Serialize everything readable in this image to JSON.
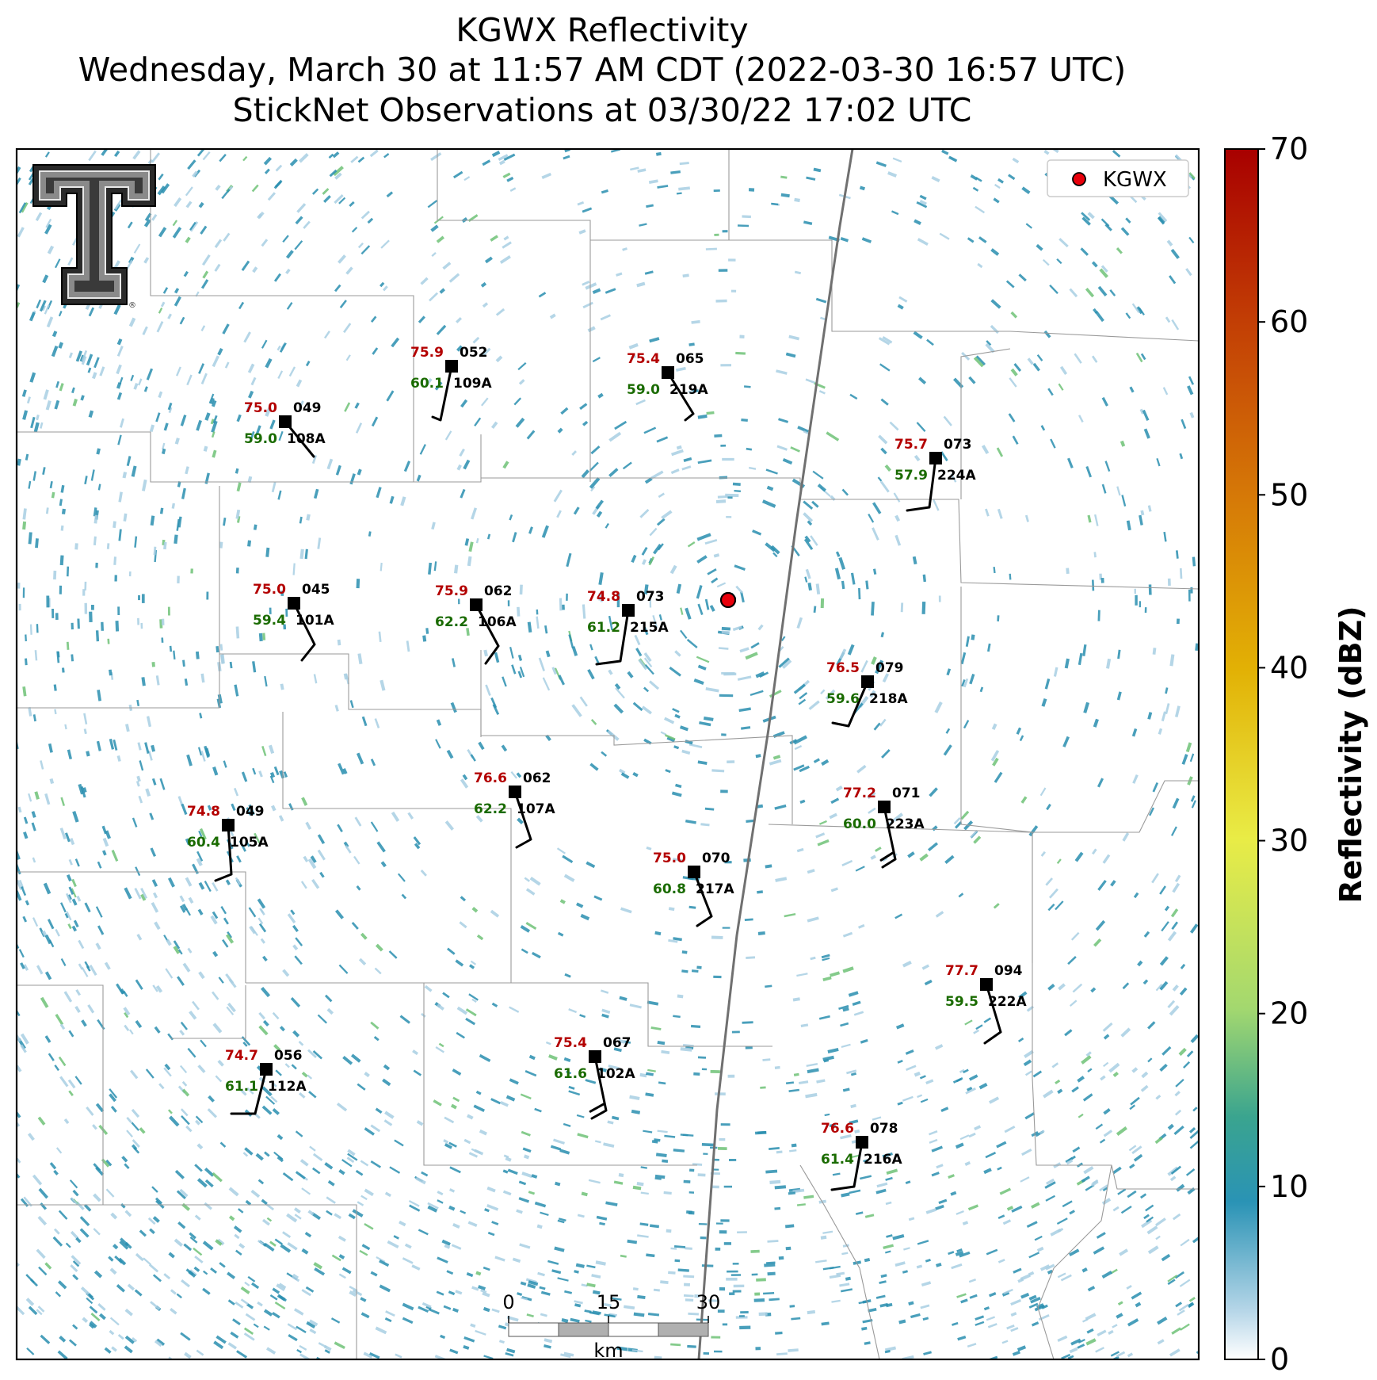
{
  "title": {
    "line1": "KGWX Reflectivity",
    "line2": "Wednesday, March 30 at 11:57 AM CDT (2022-03-30 16:57 UTC)",
    "line3": "StickNet Observations at 03/30/22 17:02 UTC"
  },
  "radar": {
    "name": "KGWX"
  },
  "legend": {
    "label": "KGWX",
    "marker_color": "#e8000b"
  },
  "colorbar": {
    "label": "Reflectivity (dBZ)",
    "ticks": [
      "0",
      "10",
      "20",
      "30",
      "40",
      "50",
      "60",
      "70"
    ],
    "min": 0,
    "max": 70
  },
  "scalebar": {
    "ticks": [
      "0",
      "15",
      "30"
    ],
    "unit": "km"
  },
  "colors": {
    "temperature": "#b30000",
    "dewpoint": "#1a6b00",
    "echo_main": "#2a8fb0",
    "echo_light": "#a9cfe3",
    "echo_green": "#6fc277"
  },
  "stations": [
    {
      "id": "109A",
      "temp": "75.9",
      "dew": "60.1",
      "pres": "052"
    },
    {
      "id": "219A",
      "temp": "75.4",
      "dew": "59.0",
      "pres": "065"
    },
    {
      "id": "108A",
      "temp": "75.0",
      "dew": "59.0",
      "pres": "049"
    },
    {
      "id": "224A",
      "temp": "75.7",
      "dew": "57.9",
      "pres": "073"
    },
    {
      "id": "101A",
      "temp": "75.0",
      "dew": "59.4",
      "pres": "045"
    },
    {
      "id": "106A",
      "temp": "75.9",
      "dew": "62.2",
      "pres": "062"
    },
    {
      "id": "215A",
      "temp": "74.8",
      "dew": "61.2",
      "pres": "073"
    },
    {
      "id": "218A",
      "temp": "76.5",
      "dew": "59.6",
      "pres": "079"
    },
    {
      "id": "107A",
      "temp": "76.6",
      "dew": "62.2",
      "pres": "062"
    },
    {
      "id": "223A",
      "temp": "77.2",
      "dew": "60.0",
      "pres": "071"
    },
    {
      "id": "105A",
      "temp": "74.8",
      "dew": "60.4",
      "pres": "049"
    },
    {
      "id": "217A",
      "temp": "75.0",
      "dew": "60.8",
      "pres": "070"
    },
    {
      "id": "222A",
      "temp": "77.7",
      "dew": "59.5",
      "pres": "094"
    },
    {
      "id": "102A",
      "temp": "75.4",
      "dew": "61.6",
      "pres": "067"
    },
    {
      "id": "112A",
      "temp": "74.7",
      "dew": "61.1",
      "pres": "056"
    },
    {
      "id": "216A",
      "temp": "76.6",
      "dew": "61.4",
      "pres": "078"
    }
  ]
}
